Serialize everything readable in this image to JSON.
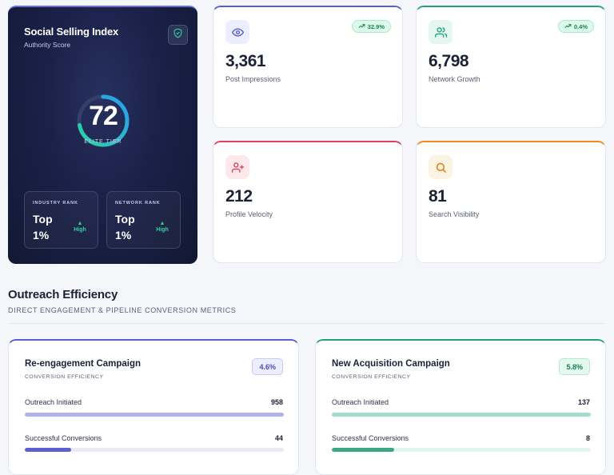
{
  "hero": {
    "title": "Social Selling Index",
    "subtitle": "Authority Score",
    "score": "72",
    "score_value": 72,
    "tier": "ELITE TIER",
    "industry_rank": {
      "label": "INDUSTRY RANK",
      "value_line1": "Top",
      "value_line2": "1%",
      "trend": "High"
    },
    "network_rank": {
      "label": "NETWORK RANK",
      "value_line1": "Top",
      "value_line2": "1%",
      "trend": "High"
    },
    "icon": "shield-check-icon"
  },
  "stats": [
    {
      "value": "3,361",
      "label": "Post Impressions",
      "badge": "32.9%",
      "icon": "eye-icon",
      "accent": "#5b5fd3"
    },
    {
      "value": "6,798",
      "label": "Network Growth",
      "badge": "0.4%",
      "icon": "users-icon",
      "accent": "#1fa477"
    },
    {
      "value": "212",
      "label": "Profile Velocity",
      "badge": "",
      "icon": "user-plus-icon",
      "accent": "#e0415c"
    },
    {
      "value": "81",
      "label": "Search Visibility",
      "badge": "",
      "icon": "search-icon",
      "accent": "#f08a1c"
    }
  ],
  "section": {
    "title": "Outreach Efficiency",
    "subtitle": "DIRECT ENGAGEMENT & PIPELINE CONVERSION METRICS"
  },
  "campaigns": [
    {
      "title": "Re-engagement Campaign",
      "subtitle": "CONVERSION EFFICIENCY",
      "badge": "4.6%",
      "accent": "#5b5fd3",
      "outreach_label": "Outreach Initiated",
      "outreach_value": "958",
      "outreach_fraction": 1.0,
      "conversions_label": "Successful Conversions",
      "conversions_value": "44",
      "conversions_fraction": 0.18
    },
    {
      "title": "New Acquisition Campaign",
      "subtitle": "CONVERSION EFFICIENCY",
      "badge": "5.8%",
      "accent": "#1fa477",
      "outreach_label": "Outreach Initiated",
      "outreach_value": "137",
      "outreach_fraction": 1.0,
      "conversions_label": "Successful Conversions",
      "conversions_value": "8",
      "conversions_fraction": 0.24
    }
  ]
}
